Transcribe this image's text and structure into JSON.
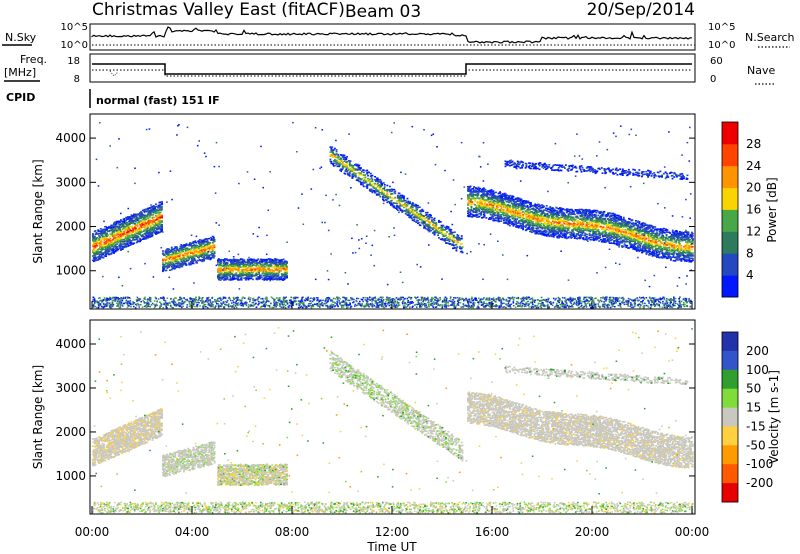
{
  "header": {
    "title": "Christmas Valley East (fitACF)",
    "beam": "Beam 03",
    "date": "20/Sep/2014"
  },
  "strip_labels": {
    "nsky": "N.Sky",
    "nsearch": "N.Search",
    "freq_top": "Freq.",
    "freq_bottom": "[MHz]",
    "nave": "Nave",
    "cpid": "CPID",
    "cpid_value": "normal (fast) 151 IF",
    "nsky_ticks": [
      "10^5",
      "10^0"
    ],
    "nsearch_ticks": [
      "10^5",
      "10^0"
    ],
    "freq_ticks": [
      "18",
      "8"
    ],
    "nave_ticks": [
      "60",
      "0"
    ]
  },
  "chart_data": [
    {
      "type": "heatmap",
      "name": "power",
      "ylabel": "Slant Range [km]",
      "xlabel": "Time UT",
      "xlim_hours": [
        0,
        24
      ],
      "ylim": [
        180,
        4500
      ],
      "x_ticks": [
        "00:00",
        "04:00",
        "08:00",
        "12:00",
        "16:00",
        "20:00",
        "00:00"
      ],
      "y_ticks": [
        1000,
        2000,
        3000,
        4000
      ],
      "colorbar": {
        "label": "Power [dB]",
        "ticks": [
          4,
          8,
          12,
          16,
          20,
          24,
          28
        ],
        "colors": [
          "#0018ff",
          "#2448c0",
          "#2e7a5c",
          "#48a848",
          "#f8d400",
          "#ff9400",
          "#ff4400",
          "#ee0000"
        ]
      },
      "features": [
        {
          "t": [
            0.0,
            2.8
          ],
          "range_km": [
            1400,
            2600
          ],
          "peak_db": 28
        },
        {
          "t": [
            2.8,
            4.9
          ],
          "range_km": [
            1150,
            1600
          ],
          "peak_db": 26
        },
        {
          "t": [
            5.0,
            7.8
          ],
          "range_km": [
            780,
            1300
          ],
          "peak_db": 26
        },
        {
          "t": [
            9.5,
            14.8
          ],
          "range_km": [
            1500,
            3800
          ],
          "peak_db": 24
        },
        {
          "t": [
            15.0,
            24.0
          ],
          "range_km": [
            1350,
            2700
          ],
          "peak_db": 24
        }
      ]
    },
    {
      "type": "heatmap",
      "name": "velocity",
      "ylabel": "Slant Range [km]",
      "xlabel": "Time UT",
      "xlim_hours": [
        0,
        24
      ],
      "ylim": [
        180,
        4500
      ],
      "x_ticks": [
        "00:00",
        "04:00",
        "08:00",
        "12:00",
        "16:00",
        "20:00",
        "00:00"
      ],
      "y_ticks": [
        1000,
        2000,
        3000,
        4000
      ],
      "colorbar": {
        "label": "Velocity [m s-1]",
        "ticks": [
          200,
          100,
          50,
          15,
          -15,
          -50,
          -100,
          -200
        ],
        "colors": [
          "#2233aa",
          "#3355cc",
          "#2fa02f",
          "#7fdc3a",
          "#c8c8c0",
          "#ffd040",
          "#ff9a00",
          "#ff5a00",
          "#e60000"
        ]
      }
    }
  ]
}
